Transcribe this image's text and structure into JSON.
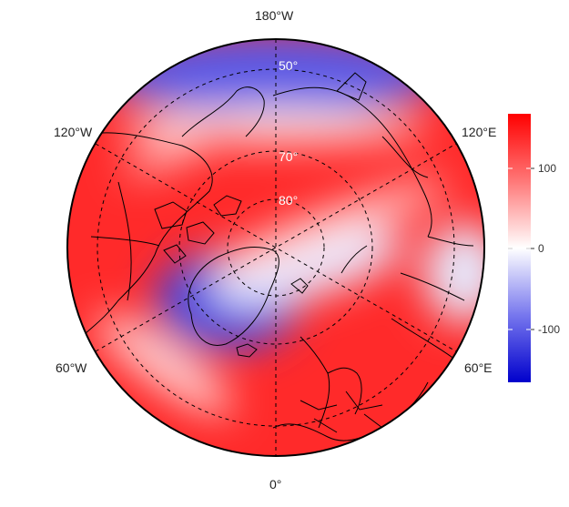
{
  "figure": {
    "projection": "north polar stereographic",
    "longitude_labels": {
      "top": "180°W",
      "upper_left": "120°W",
      "upper_right": "120°E",
      "lower_left": "60°W",
      "lower_right": "60°E",
      "bottom": "0°"
    },
    "latitude_labels": [
      "50°",
      "70°",
      "80°"
    ],
    "graticule_style": "dashed"
  },
  "colorbar": {
    "ticks": [
      "100",
      "0",
      "-100"
    ],
    "tick_values": [
      100,
      0,
      -100
    ],
    "range": [
      -165,
      165
    ],
    "colors": {
      "high": "#ff0000",
      "mid": "#ffffff",
      "low": "#0000ff"
    }
  }
}
